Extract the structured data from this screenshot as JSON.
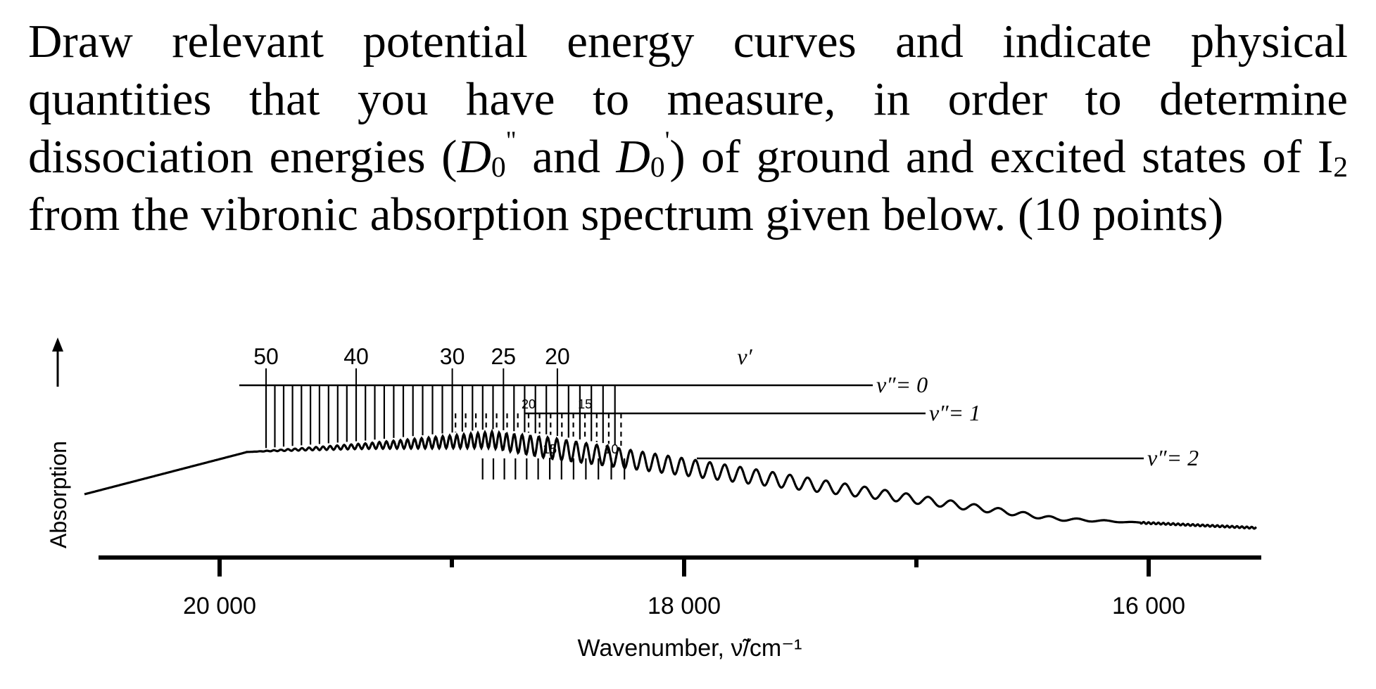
{
  "question": {
    "part1": "Draw relevant potential energy curves and indicate physical quantities that you have to measure, in order to determine dissociation energies (",
    "d0_symbol": "D",
    "d0_sub": "0",
    "d0_ground_mark": "\"",
    "and_text": " and ",
    "d0_excited_mark": "'",
    "part2": ") of ground and excited states of I",
    "i2_sub": "2",
    "part3": " from the vibronic absorption spectrum given below. (10 points)"
  },
  "chart_data": {
    "type": "line",
    "xlabel": "Wavenumber, ν̃/cm⁻¹",
    "ylabel": "Absorption",
    "x_ticks": [
      {
        "value": 20000,
        "label": "20 000"
      },
      {
        "value": 18000,
        "label": "18 000"
      },
      {
        "value": 16000,
        "label": "16 000"
      }
    ],
    "x_minor_ticks": [
      19000,
      17000
    ],
    "xlim": [
      20500,
      15100
    ],
    "progressions": [
      {
        "name": "v″= 0",
        "lines_from": 15,
        "lines_to": 50,
        "labels": [
          {
            "v": 50,
            "text": "50"
          },
          {
            "v": 40,
            "text": "40"
          },
          {
            "v": 30,
            "text": "30"
          },
          {
            "v": 25,
            "text": "25"
          },
          {
            "v": 20,
            "text": "20"
          }
        ],
        "series_label": "v′"
      },
      {
        "name": "v″= 1",
        "lines_from": 12,
        "lines_to": 27,
        "labels": [
          {
            "v": 20,
            "text": "20"
          },
          {
            "v": 15,
            "text": "15"
          }
        ]
      },
      {
        "name": "v″= 2",
        "lines_from": 9,
        "lines_to": 21,
        "labels": [
          {
            "v": 15,
            "text": "15"
          },
          {
            "v": 10,
            "text": "10"
          }
        ]
      }
    ]
  }
}
